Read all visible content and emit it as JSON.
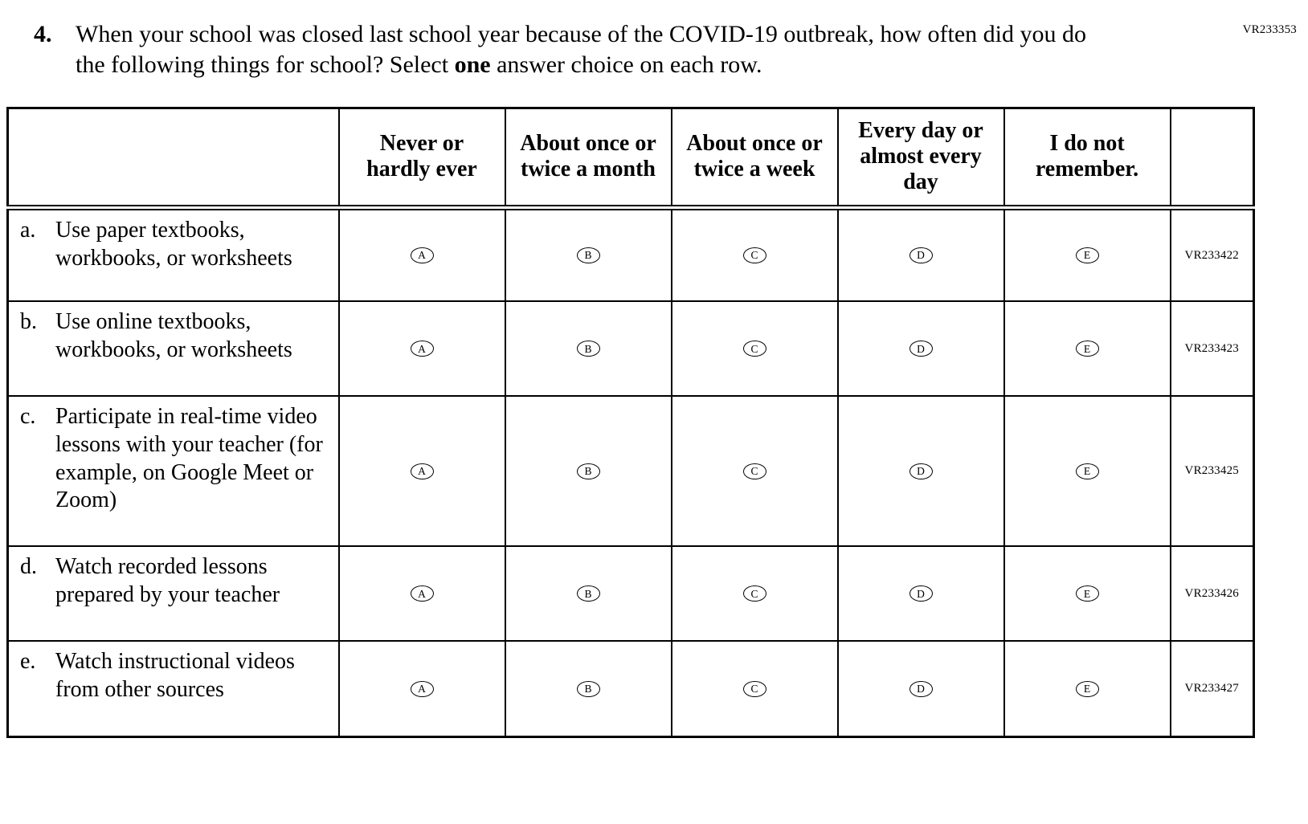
{
  "page": {
    "corner_code": "VR233353"
  },
  "question": {
    "number": "4.",
    "text_before_bold": "When your school was closed last school year because of the COVID-19 outbreak, how often did you do the following things for school? Select ",
    "bold_word": "one",
    "text_after_bold": " answer choice on each row."
  },
  "table": {
    "column_headers": [
      "Never or hardly ever",
      "About once or twice a month",
      "About once or twice a week",
      "Every day or almost every day",
      "I do not remember."
    ],
    "options": [
      "A",
      "B",
      "C",
      "D",
      "E"
    ],
    "rows": [
      {
        "letter": "a.",
        "text": "Use paper textbooks, workbooks, or worksheets",
        "code": "VR233422"
      },
      {
        "letter": "b.",
        "text": "Use online textbooks, workbooks, or worksheets",
        "code": "VR233423"
      },
      {
        "letter": "c.",
        "text": "Participate in real-time video lessons with your teacher (for example, on Google Meet or Zoom)",
        "code": "VR233425"
      },
      {
        "letter": "d.",
        "text": "Watch recorded lessons prepared by your teacher",
        "code": "VR233426"
      },
      {
        "letter": "e.",
        "text": "Watch instructional videos from other sources",
        "code": "VR233427"
      }
    ]
  }
}
